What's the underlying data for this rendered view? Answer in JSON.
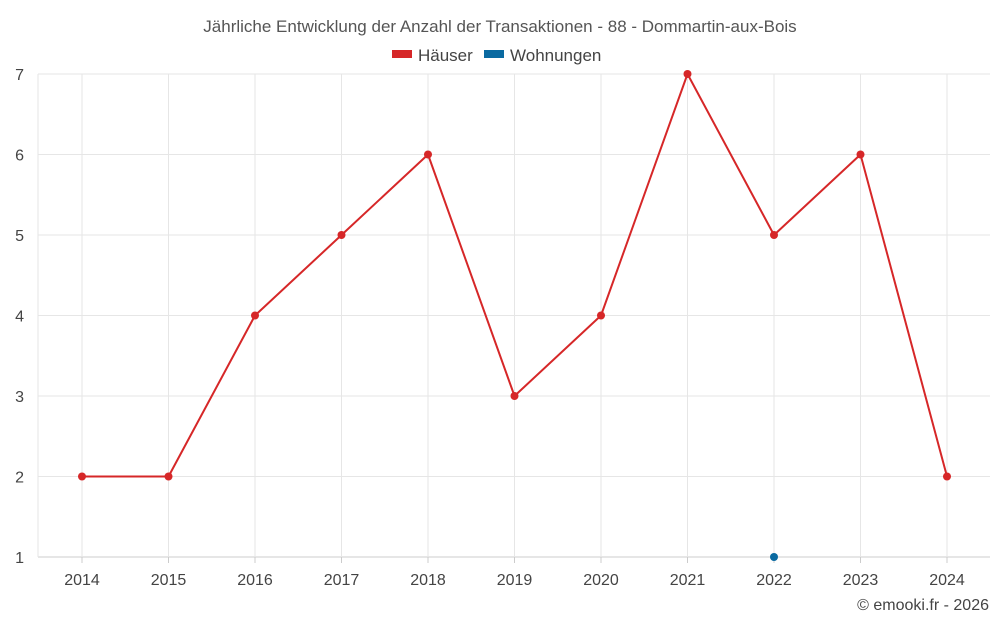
{
  "chart_data": {
    "type": "line",
    "title": "Jährliche Entwicklung der Anzahl der Transaktionen - 88 - Dommartin-aux-Bois",
    "xlabel": "",
    "ylabel": "",
    "categories": [
      "2014",
      "2015",
      "2016",
      "2017",
      "2018",
      "2019",
      "2020",
      "2021",
      "2022",
      "2023",
      "2024"
    ],
    "ylim": [
      1,
      7
    ],
    "yticks": [
      1,
      2,
      3,
      4,
      5,
      6,
      7
    ],
    "grid": true,
    "legend": "top-center",
    "series": [
      {
        "name": "Häuser",
        "color": "#d62728",
        "values": [
          2,
          2,
          4,
          5,
          6,
          3,
          4,
          7,
          5,
          6,
          2
        ]
      },
      {
        "name": "Wohnungen",
        "color": "#0a6aa1",
        "values": [
          null,
          null,
          null,
          null,
          null,
          null,
          null,
          null,
          1,
          null,
          null
        ]
      }
    ]
  },
  "credit": "© emooki.fr - 2026"
}
